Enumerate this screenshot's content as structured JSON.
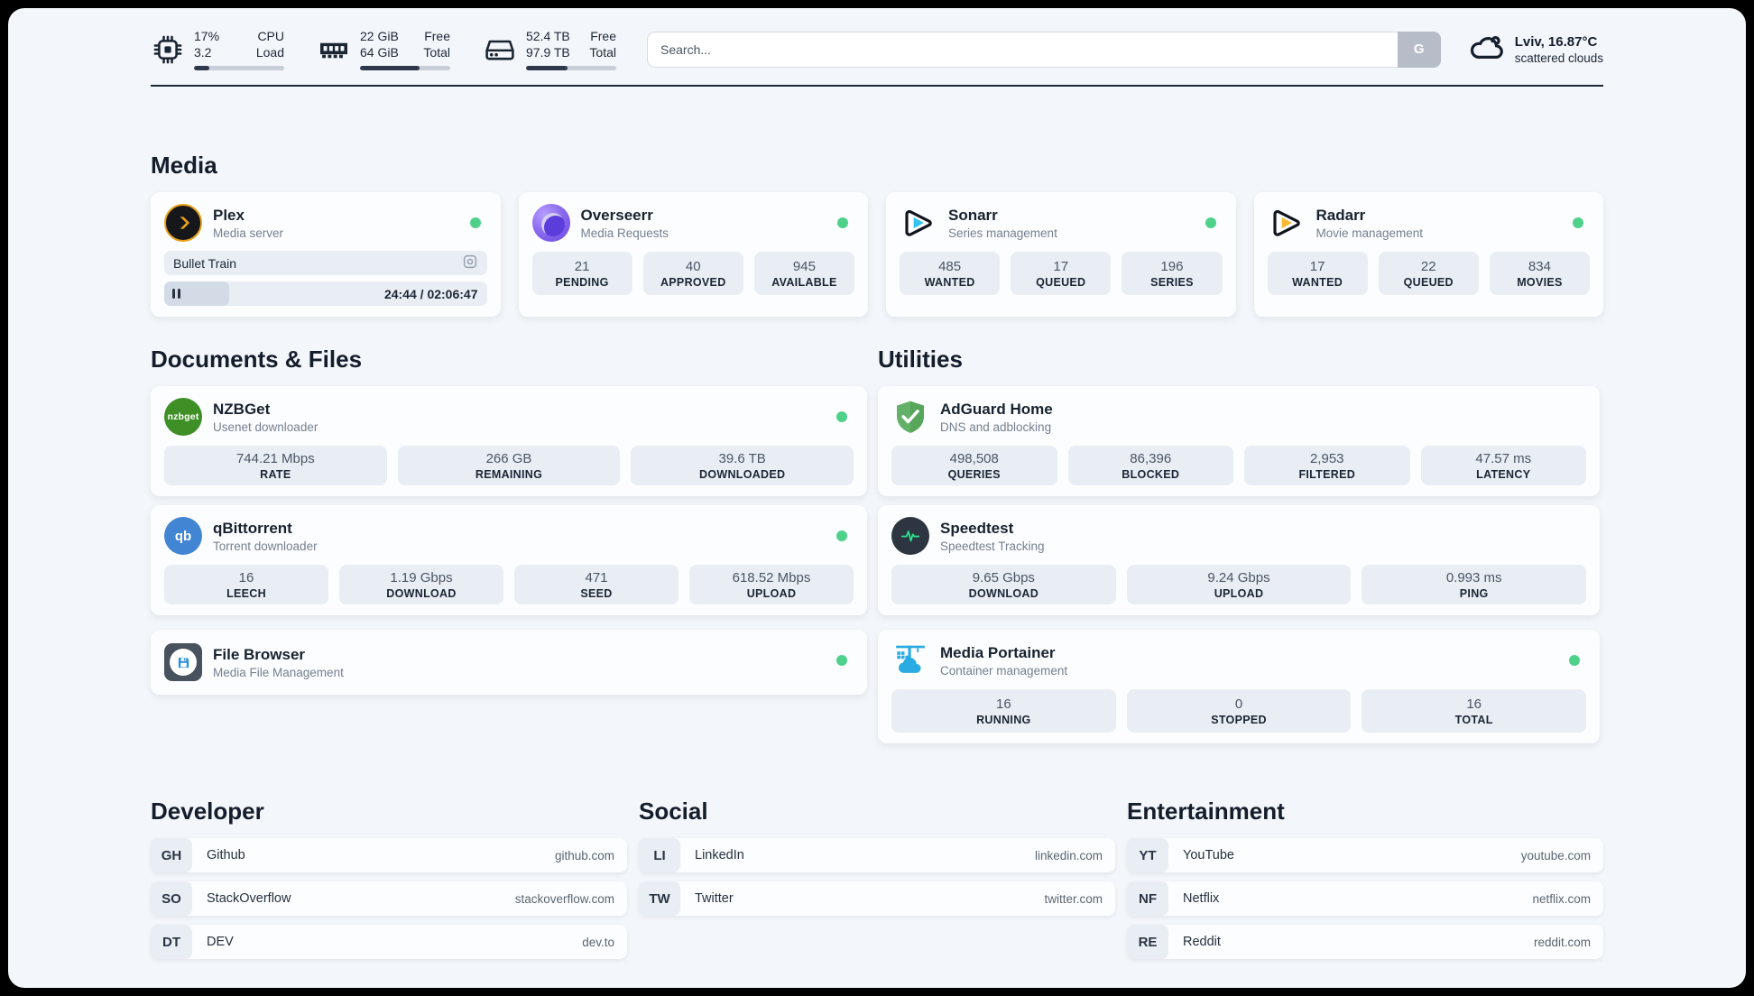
{
  "colors": {
    "status_green": "#4ed18a",
    "plex_amber": "#e8a117",
    "sonarr_cyan": "#34c3ef",
    "radarr_amber": "#f8b830",
    "nzbget_green": "#3f8f27",
    "qbittorrent_blue": "#4285d2",
    "adguard_green": "#63b168",
    "speedtest_green": "#2ee08e",
    "portainer_blue": "#2aabe2",
    "page_background": "#f3f6fa"
  },
  "header": {
    "system_stats": [
      {
        "icon": "cpu-icon",
        "value_top": "17%",
        "value_bottom": "3.2",
        "label_top": "CPU",
        "label_bottom": "Load",
        "progress_pct": 17
      },
      {
        "icon": "ram-icon",
        "value_top": "22 GiB",
        "value_bottom": "64 GiB",
        "label_top": "Free",
        "label_bottom": "Total",
        "progress_pct": 66
      },
      {
        "icon": "disk-icon",
        "value_top": "52.4 TB",
        "value_bottom": "97.9 TB",
        "label_top": "Free",
        "label_bottom": "Total",
        "progress_pct": 46
      }
    ],
    "search": {
      "placeholder": "Search...",
      "button_label": "G"
    },
    "weather": {
      "summary": "Lviv, 16.87°C",
      "condition": "scattered clouds"
    }
  },
  "media": {
    "title": "Media",
    "plex": {
      "name": "Plex",
      "subtitle": "Media server",
      "now_playing": "Bullet Train",
      "time_display": "24:44 / 02:06:47",
      "progress_pct": 20
    },
    "overseerr": {
      "name": "Overseerr",
      "subtitle": "Media Requests",
      "stats": [
        {
          "value": "21",
          "label": "PENDING"
        },
        {
          "value": "40",
          "label": "APPROVED"
        },
        {
          "value": "945",
          "label": "AVAILABLE"
        }
      ]
    },
    "sonarr": {
      "name": "Sonarr",
      "subtitle": "Series management",
      "stats": [
        {
          "value": "485",
          "label": "WANTED"
        },
        {
          "value": "17",
          "label": "QUEUED"
        },
        {
          "value": "196",
          "label": "SERIES"
        }
      ]
    },
    "radarr": {
      "name": "Radarr",
      "subtitle": "Movie management",
      "stats": [
        {
          "value": "17",
          "label": "WANTED"
        },
        {
          "value": "22",
          "label": "QUEUED"
        },
        {
          "value": "834",
          "label": "MOVIES"
        }
      ]
    }
  },
  "documents": {
    "title": "Documents & Files",
    "nzbget": {
      "name": "NZBGet",
      "subtitle": "Usenet downloader",
      "badge": "nzbget",
      "stats": [
        {
          "value": "744.21 Mbps",
          "label": "RATE"
        },
        {
          "value": "266 GB",
          "label": "REMAINING"
        },
        {
          "value": "39.6 TB",
          "label": "DOWNLOADED"
        }
      ]
    },
    "qbittorrent": {
      "name": "qBittorrent",
      "subtitle": "Torrent downloader",
      "badge": "qb",
      "stats": [
        {
          "value": "16",
          "label": "LEECH"
        },
        {
          "value": "1.19 Gbps",
          "label": "DOWNLOAD"
        },
        {
          "value": "471",
          "label": "SEED"
        },
        {
          "value": "618.52 Mbps",
          "label": "UPLOAD"
        }
      ]
    },
    "filebrowser": {
      "name": "File Browser",
      "subtitle": "Media File Management"
    }
  },
  "utilities": {
    "title": "Utilities",
    "adguard": {
      "name": "AdGuard Home",
      "subtitle": "DNS and adblocking",
      "stats": [
        {
          "value": "498,508",
          "label": "QUERIES"
        },
        {
          "value": "86,396",
          "label": "BLOCKED"
        },
        {
          "value": "2,953",
          "label": "FILTERED"
        },
        {
          "value": "47.57 ms",
          "label": "LATENCY"
        }
      ]
    },
    "speedtest": {
      "name": "Speedtest",
      "subtitle": "Speedtest Tracking",
      "stats": [
        {
          "value": "9.65 Gbps",
          "label": "DOWNLOAD"
        },
        {
          "value": "9.24 Gbps",
          "label": "UPLOAD"
        },
        {
          "value": "0.993 ms",
          "label": "PING"
        }
      ]
    },
    "portainer": {
      "name": "Media Portainer",
      "subtitle": "Container management",
      "stats": [
        {
          "value": "16",
          "label": "RUNNING"
        },
        {
          "value": "0",
          "label": "STOPPED"
        },
        {
          "value": "16",
          "label": "TOTAL"
        }
      ]
    }
  },
  "bookmarks": {
    "developer": {
      "title": "Developer",
      "items": [
        {
          "badge": "GH",
          "name": "Github",
          "domain": "github.com"
        },
        {
          "badge": "SO",
          "name": "StackOverflow",
          "domain": "stackoverflow.com"
        },
        {
          "badge": "DT",
          "name": "DEV",
          "domain": "dev.to"
        }
      ]
    },
    "social": {
      "title": "Social",
      "items": [
        {
          "badge": "LI",
          "name": "LinkedIn",
          "domain": "linkedin.com"
        },
        {
          "badge": "TW",
          "name": "Twitter",
          "domain": "twitter.com"
        }
      ]
    },
    "entertainment": {
      "title": "Entertainment",
      "items": [
        {
          "badge": "YT",
          "name": "YouTube",
          "domain": "youtube.com"
        },
        {
          "badge": "NF",
          "name": "Netflix",
          "domain": "netflix.com"
        },
        {
          "badge": "RE",
          "name": "Reddit",
          "domain": "reddit.com"
        }
      ]
    }
  }
}
